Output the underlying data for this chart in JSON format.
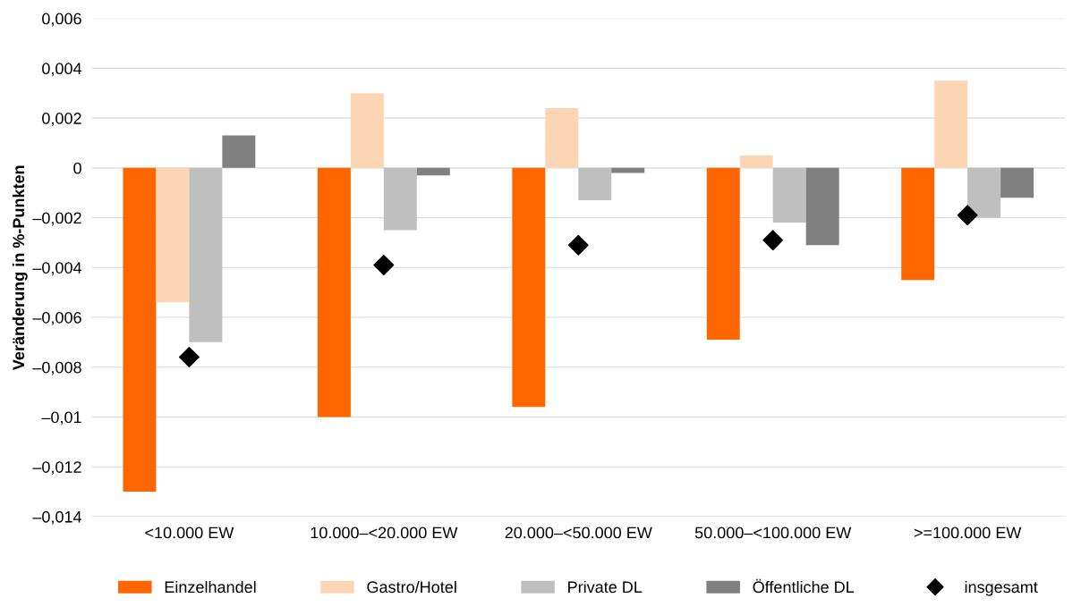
{
  "chart_data": {
    "type": "bar",
    "ylabel": "Veränderung in %-Punkten",
    "categories": [
      "<10.000 EW",
      "10.000–<20.000 EW",
      "20.000–<50.000 EW",
      "50.000–<100.000 EW",
      ">=100.000 EW"
    ],
    "series": [
      {
        "name": "Einzelhandel",
        "color": "#ff6600",
        "values": [
          -0.013,
          -0.01,
          -0.0096,
          -0.0069,
          -0.0045
        ]
      },
      {
        "name": "Gastro/Hotel",
        "color": "#fcd5b5",
        "values": [
          -0.0054,
          0.003,
          0.0024,
          0.0005,
          0.0035
        ]
      },
      {
        "name": "Private DL",
        "color": "#bfbfbf",
        "values": [
          -0.007,
          -0.0025,
          -0.0013,
          -0.0022,
          -0.002
        ]
      },
      {
        "name": "Öffentliche DL",
        "color": "#808080",
        "values": [
          0.0013,
          -0.0003,
          -0.0002,
          -0.0031,
          -0.0012
        ]
      },
      {
        "name": "insgesamt",
        "type": "scatter",
        "marker": "diamond",
        "color": "#000000",
        "values": [
          -0.0076,
          -0.0039,
          -0.0031,
          -0.0029,
          -0.0019
        ]
      }
    ],
    "ylim": [
      -0.014,
      0.006
    ],
    "yticks": [
      {
        "value": 0.006,
        "label": "0,006"
      },
      {
        "value": 0.004,
        "label": "0,004"
      },
      {
        "value": 0.002,
        "label": "0,002"
      },
      0,
      {
        "value": -0.002,
        "label": "–0,002"
      },
      {
        "value": -0.004,
        "label": "–0,004"
      },
      {
        "value": -0.006,
        "label": "–0,006"
      },
      {
        "value": -0.008,
        "label": "–0,008"
      },
      {
        "value": -0.01,
        "label": "–0,01"
      },
      {
        "value": -0.012,
        "label": "–0,012"
      },
      {
        "value": -0.014,
        "label": "–0,014"
      }
    ],
    "grid": "y",
    "legend": "bottom"
  }
}
